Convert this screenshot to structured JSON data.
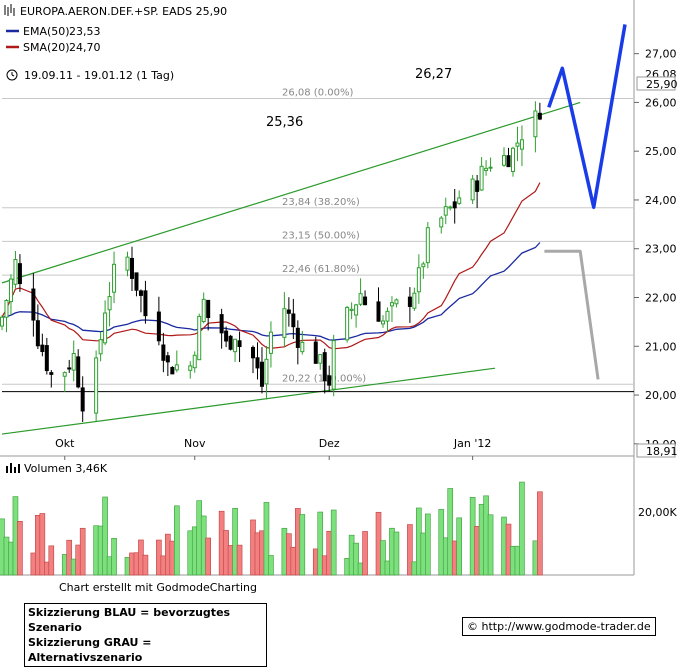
{
  "chart_data": {
    "type": "candlestick",
    "title": "EUROPA.AERON.DEF.+SP. EADS 25,90",
    "period": "19.09.11 - 19.01.12 (1 Tag)",
    "indicators": [
      {
        "name": "EMA(50)",
        "value": "23,53",
        "color": "#1a2aa0"
      },
      {
        "name": "SMA(20)",
        "value": "24,70",
        "color": "#b01818"
      }
    ],
    "price_axis": {
      "ticks": [
        "27,00",
        "26,00",
        "25,00",
        "24,00",
        "23,00",
        "22,00",
        "21,00",
        "20,00",
        "19,00"
      ],
      "ylim": [
        18.75,
        28.1
      ],
      "current_label": "25,90",
      "high_label": "26,08",
      "low_label": "18,91"
    },
    "x_axis": {
      "ticks": [
        "Okt",
        "Nov",
        "Dez",
        "Jan '12"
      ]
    },
    "fibonacci": [
      {
        "label": "26,08 (0.00%)",
        "value": 26.08
      },
      {
        "label": "23,84 (38.20%)",
        "value": 23.84
      },
      {
        "label": "23,15 (50.00%)",
        "value": 23.15
      },
      {
        "label": "22,46 (61.80%)",
        "value": 22.46
      },
      {
        "label": "20,22 (100.00%)",
        "value": 20.22
      }
    ],
    "annotations": [
      "25,36",
      "26,27"
    ],
    "volume": {
      "title": "Volumen 3,46K",
      "tick": "20,00K"
    },
    "scenarios": {
      "blue": [
        [
          "2012-01-19",
          25.9
        ],
        [
          "2012-01-22",
          26.7
        ],
        [
          "2012-01-29",
          23.85
        ],
        [
          "2012-02-05",
          27.6
        ]
      ],
      "grey": [
        [
          "2012-01-18",
          22.95
        ],
        [
          "2012-01-26",
          22.95
        ],
        [
          "2012-01-30",
          20.32
        ]
      ]
    },
    "trendlines": {
      "upper_channel": [
        [
          "2011-09-19",
          22.3
        ],
        [
          "2012-01-26",
          26.0
        ]
      ],
      "lower_channel": [
        [
          "2011-09-19",
          19.2
        ],
        [
          "2012-01-07",
          20.55
        ]
      ],
      "support": 20.07
    },
    "colors": {
      "up": "#2ea02e",
      "down": "#000000",
      "vol_up": "#7ce07c",
      "vol_down": "#f28080"
    }
  },
  "footer": {
    "credit": "Chart erstellt mit GodmodeCharting",
    "note_blue": "Skizzierung BLAU = bevorzugtes Szenario",
    "note_grey": "Skizzierung GRAU = Alternativszenario",
    "url": "© http://www.godmode-trader.de"
  }
}
